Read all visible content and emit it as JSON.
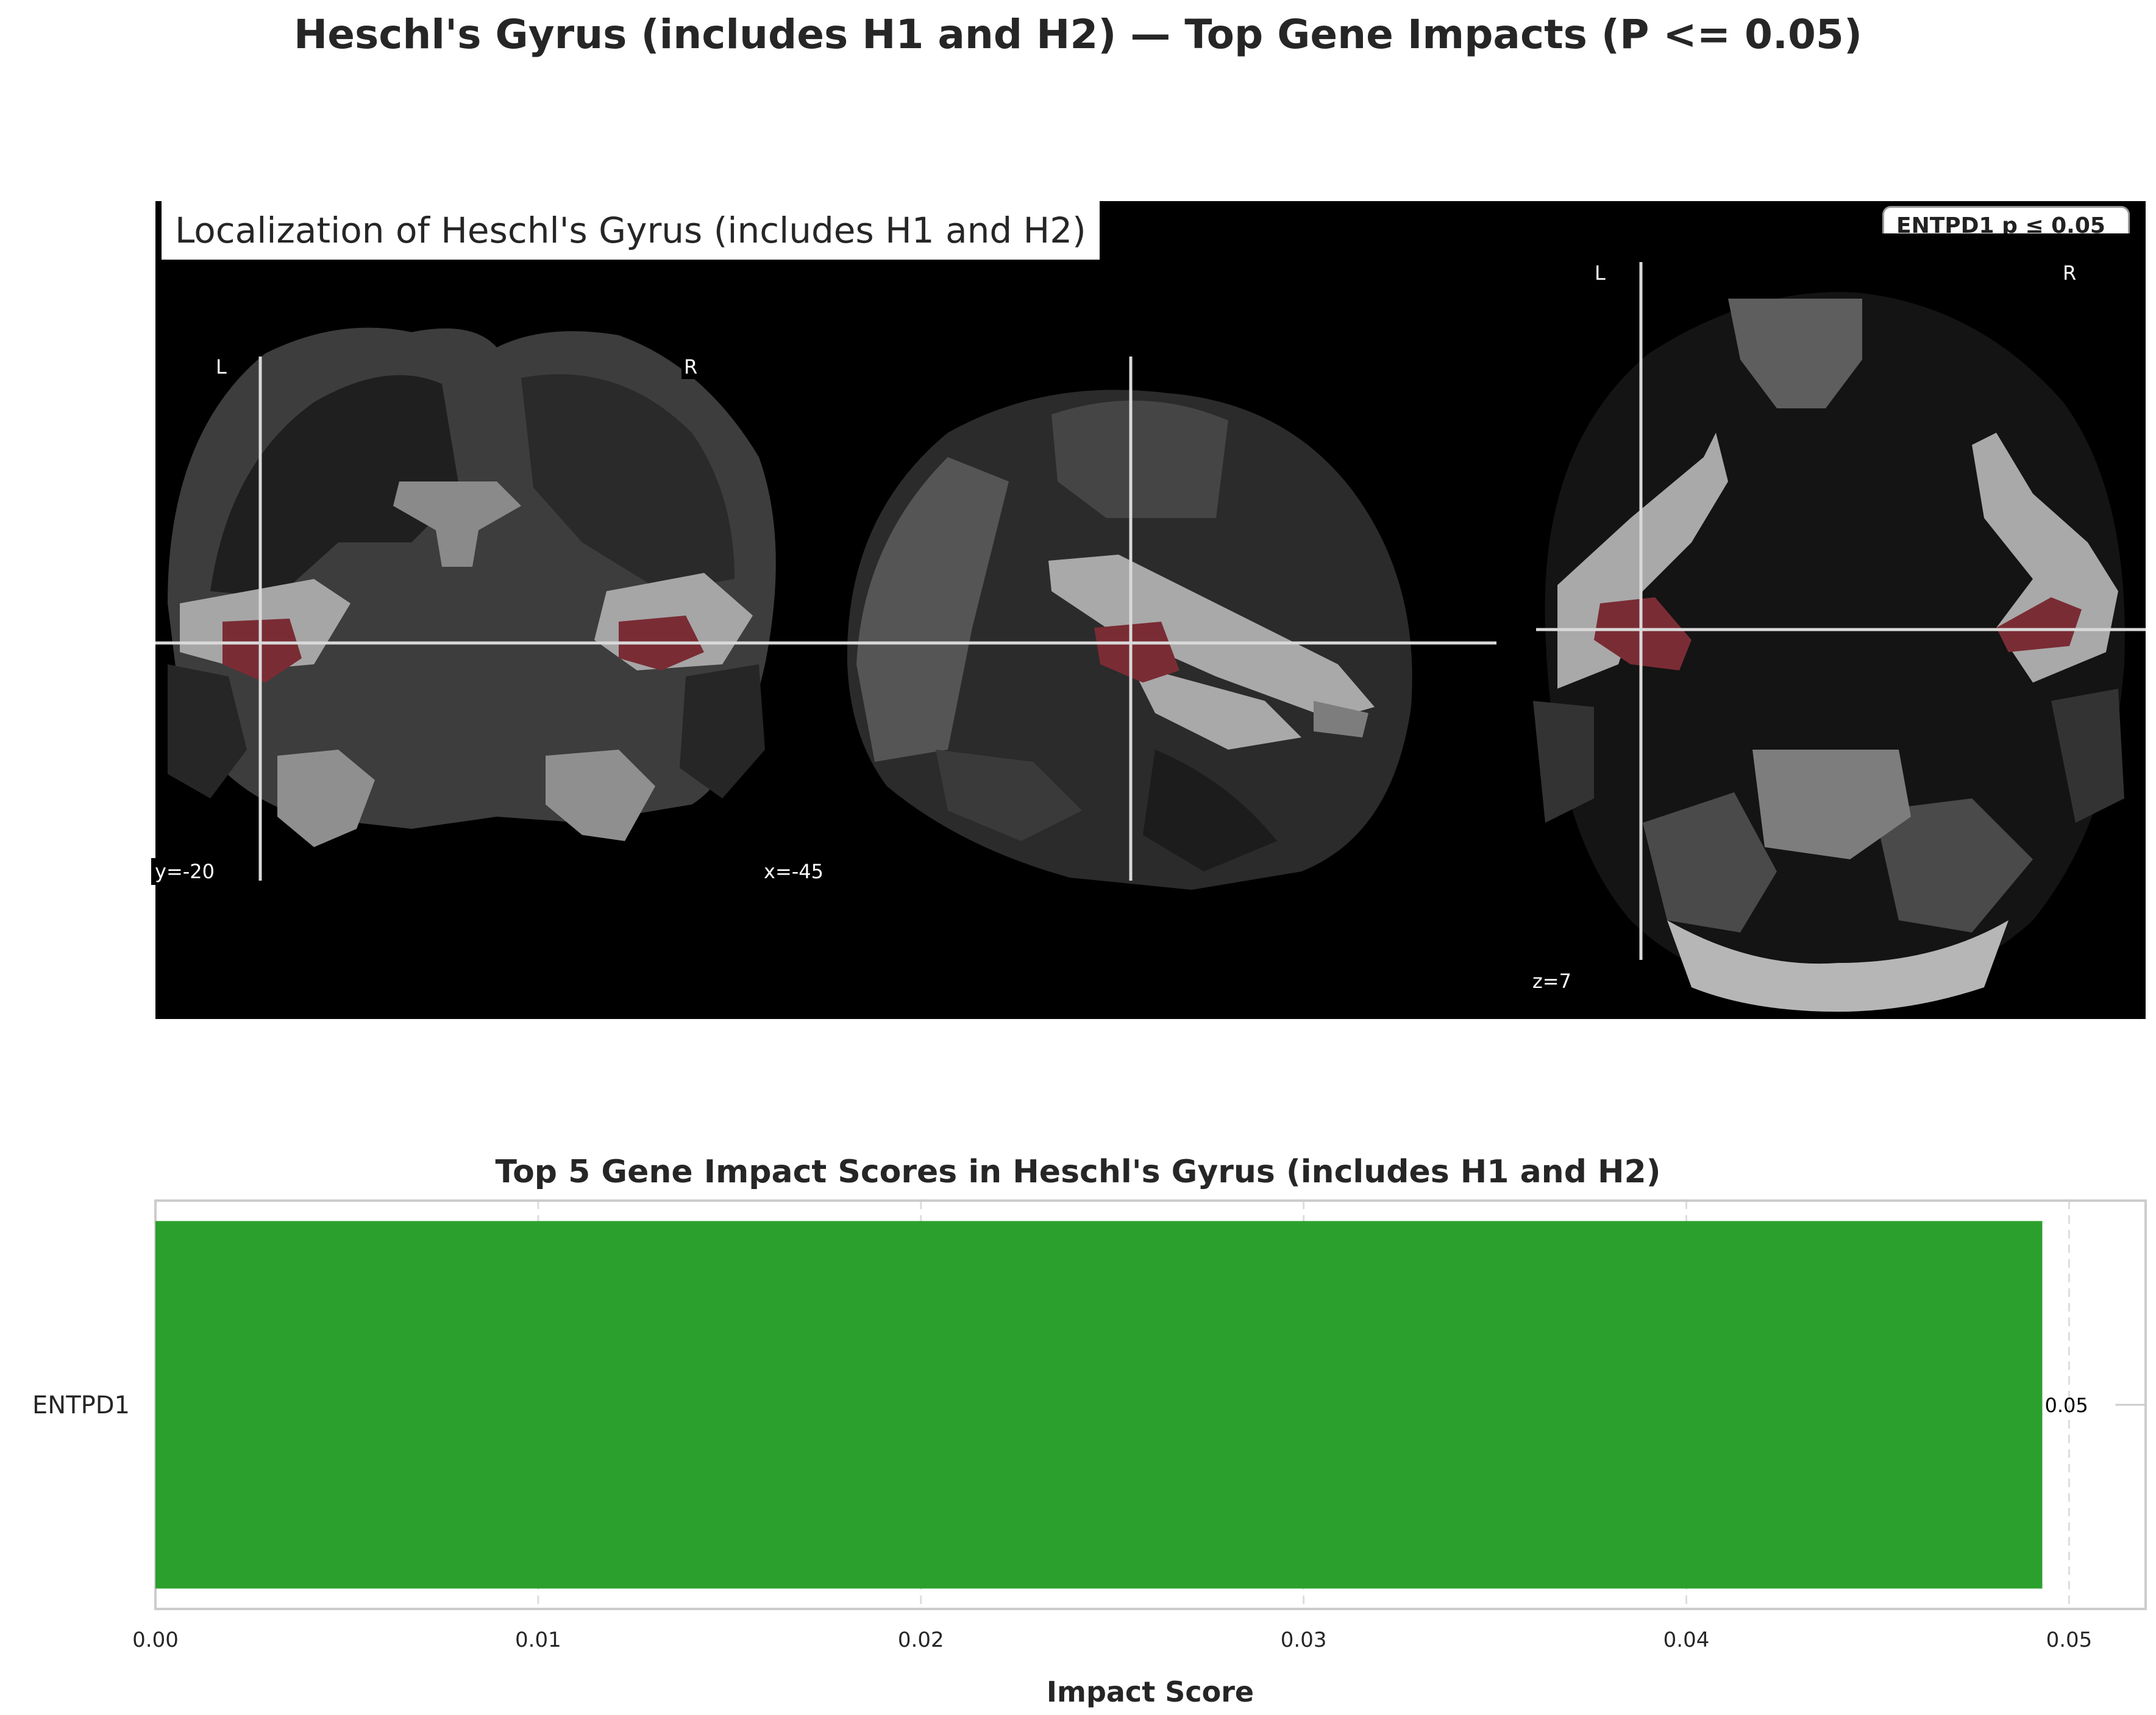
{
  "figure": {
    "suptitle": "Heschl's Gyrus (includes H1 and H2) — Top Gene Impacts (P <= 0.05)"
  },
  "brain_panel": {
    "title": "Localization of Heschl's Gyrus (includes H1 and H2)",
    "legend_text": "ENTPD1 p ≤ 0.05",
    "views": [
      {
        "name": "coronal",
        "left_label": "L",
        "right_label": "R",
        "coord_label": "y=-20"
      },
      {
        "name": "sagittal",
        "coord_label": "x=-45"
      },
      {
        "name": "axial",
        "left_label": "L",
        "right_label": "R",
        "coord_label": "z=7"
      }
    ],
    "colors": {
      "background": "#000000",
      "highlight": "#7a2c34",
      "crosshair": "#d9d9d9"
    }
  },
  "chart_data": {
    "type": "bar",
    "orientation": "horizontal",
    "title": "Top 5 Gene Impact Scores in Heschl's Gyrus (includes H1 and H2)",
    "xlabel": "Impact Score",
    "ylabel": "",
    "categories": [
      "ENTPD1"
    ],
    "values": [
      0.0493
    ],
    "data_labels": [
      "0.05"
    ],
    "xlim": [
      0.0,
      0.052
    ],
    "xticks": [
      0.0,
      0.01,
      0.02,
      0.03,
      0.04,
      0.05
    ],
    "xtick_labels": [
      "0.00",
      "0.01",
      "0.02",
      "0.03",
      "0.04",
      "0.05"
    ],
    "grid": true,
    "bar_color": "#2ca02c"
  }
}
